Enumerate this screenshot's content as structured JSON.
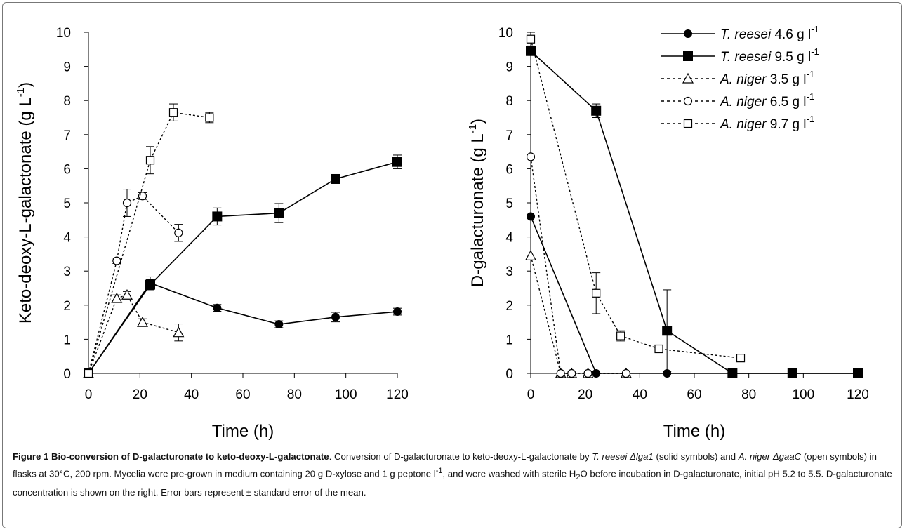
{
  "chart_data": [
    {
      "type": "line",
      "xlabel": "Time (h)",
      "ylabel": "Keto-deoxy-L-galactonate (g L-1)",
      "ylabel_main": "Keto-deoxy-L-galactonate (g L",
      "ylabel_sup": "-1",
      "ylabel_end": ")",
      "xlim": [
        0,
        120
      ],
      "ylim": [
        0,
        10
      ],
      "x_ticks": [
        "0",
        "20",
        "40",
        "60",
        "80",
        "100",
        "120"
      ],
      "y_ticks": [
        "0",
        "1",
        "2",
        "3",
        "4",
        "5",
        "6",
        "7",
        "8",
        "9",
        "10"
      ],
      "grid": false,
      "series": [
        {
          "name": "T. reesei 4.6 g l-1",
          "marker": "filled-circle",
          "line": "solid",
          "x": [
            0,
            24,
            50,
            74,
            96,
            120
          ],
          "y": [
            0,
            2.65,
            1.92,
            1.44,
            1.65,
            1.81
          ],
          "err": [
            0,
            0.18,
            0.1,
            0.1,
            0.14,
            0.1
          ]
        },
        {
          "name": "T. reesei 9.5 g l-1",
          "marker": "filled-square",
          "line": "solid",
          "x": [
            0,
            24,
            50,
            74,
            96,
            120
          ],
          "y": [
            0,
            2.6,
            4.6,
            4.7,
            5.7,
            6.2
          ],
          "err": [
            0,
            0.15,
            0.25,
            0.28,
            0.07,
            0.2
          ]
        },
        {
          "name": "A. niger 3.5 g l-1",
          "marker": "open-triangle",
          "line": "dotted",
          "x": [
            0,
            11,
            15,
            21,
            35
          ],
          "y": [
            0,
            2.2,
            2.3,
            1.5,
            1.2
          ],
          "err": [
            0,
            0.1,
            0.1,
            0.1,
            0.25
          ]
        },
        {
          "name": "A. niger 6.5 g l-1",
          "marker": "open-circle",
          "line": "dotted",
          "x": [
            0,
            11,
            15,
            21,
            35
          ],
          "y": [
            0,
            3.3,
            5.0,
            5.2,
            4.12
          ],
          "err": [
            0,
            0.08,
            0.4,
            0.1,
            0.25
          ]
        },
        {
          "name": "A. niger 9.7 g l-1",
          "marker": "open-square",
          "line": "dotted",
          "x": [
            0,
            24,
            33,
            47
          ],
          "y": [
            0,
            6.25,
            7.65,
            7.5
          ],
          "err": [
            0,
            0.4,
            0.25,
            0.15
          ]
        }
      ]
    },
    {
      "type": "line",
      "xlabel": "Time (h)",
      "ylabel": "D-galacturonate (g L-1)",
      "ylabel_main": "D-galacturonate (g L",
      "ylabel_sup": "-1",
      "ylabel_end": ")",
      "xlim": [
        0,
        120
      ],
      "ylim": [
        0,
        10
      ],
      "x_ticks": [
        "0",
        "20",
        "40",
        "60",
        "80",
        "100",
        "120"
      ],
      "y_ticks": [
        "0",
        "1",
        "2",
        "3",
        "4",
        "5",
        "6",
        "7",
        "8",
        "9",
        "10"
      ],
      "grid": false,
      "legend_position": "top-right",
      "series": [
        {
          "name": "T. reesei 4.6 g l-1",
          "marker": "filled-circle",
          "line": "solid",
          "x": [
            0,
            24,
            50,
            74,
            96,
            120
          ],
          "y": [
            4.6,
            0,
            0,
            0,
            0,
            0
          ],
          "err": [
            0,
            0,
            0,
            0,
            0,
            0
          ]
        },
        {
          "name": "T. reesei 9.5 g l-1",
          "marker": "filled-square",
          "line": "solid",
          "x": [
            0,
            24,
            50,
            74,
            96,
            120
          ],
          "y": [
            9.45,
            7.7,
            1.25,
            0,
            0,
            0
          ],
          "err": [
            0.1,
            0.2,
            1.2,
            0,
            0,
            0
          ]
        },
        {
          "name": "A. niger 3.5 g l-1",
          "marker": "open-triangle",
          "line": "dotted",
          "x": [
            0,
            11,
            15,
            21,
            35
          ],
          "y": [
            3.45,
            0,
            0,
            0,
            0
          ],
          "err": [
            0,
            0,
            0,
            0,
            0
          ]
        },
        {
          "name": "A. niger 6.5 g l-1",
          "marker": "open-circle",
          "line": "dotted",
          "x": [
            0,
            11,
            15,
            21,
            35
          ],
          "y": [
            6.35,
            0,
            0,
            0,
            0
          ],
          "err": [
            0,
            0,
            0,
            0,
            0
          ]
        },
        {
          "name": "A. niger 9.7 g l-1",
          "marker": "open-square",
          "line": "dotted",
          "x": [
            0,
            24,
            33,
            47,
            77
          ],
          "y": [
            9.8,
            2.35,
            1.1,
            0.72,
            0.45
          ],
          "err": [
            0.2,
            0.6,
            0.15,
            0.05,
            0.05
          ]
        }
      ]
    }
  ],
  "legend": [
    {
      "species": "T. reesei",
      "conc": " 4.6 g l",
      "sup": "-1",
      "marker": "filled-circle",
      "line": "solid"
    },
    {
      "species": "T. reesei",
      "conc": " 9.5 g l",
      "sup": "-1",
      "marker": "filled-square",
      "line": "solid"
    },
    {
      "species": "A. niger",
      "conc": " 3.5 g l",
      "sup": "-1",
      "marker": "open-triangle",
      "line": "dotted"
    },
    {
      "species": "A. niger",
      "conc": " 6.5 g l",
      "sup": "-1",
      "marker": "open-circle",
      "line": "dotted"
    },
    {
      "species": "A. niger",
      "conc": " 9.7 g l",
      "sup": "-1",
      "marker": "open-square",
      "line": "dotted"
    }
  ],
  "caption": {
    "label": "Figure 1",
    "title": "Bio-conversion of D-galacturonate to keto-deoxy-L-galactonate",
    "t1": ". Conversion of D-galacturonate to keto-deoxy-L-galactonate by ",
    "i1": "T. reesei Δlga1",
    "t2": " (solid symbols) and ",
    "i2": "A. niger ΔgaaC",
    "t3": " (open symbols) in flasks at 30°C, 200 rpm. Mycelia were pre-grown in medium containing 20 g D-xylose and 1 g peptone l",
    "sup1": "-1",
    "t4": ", and were washed with sterile H",
    "sub1": "2",
    "t5": "O before incubation in D-galacturonate, initial pH 5.2 to 5.5. D-galacturonate concentration is shown on the right. Error bars represent ± standard error of the mean."
  }
}
